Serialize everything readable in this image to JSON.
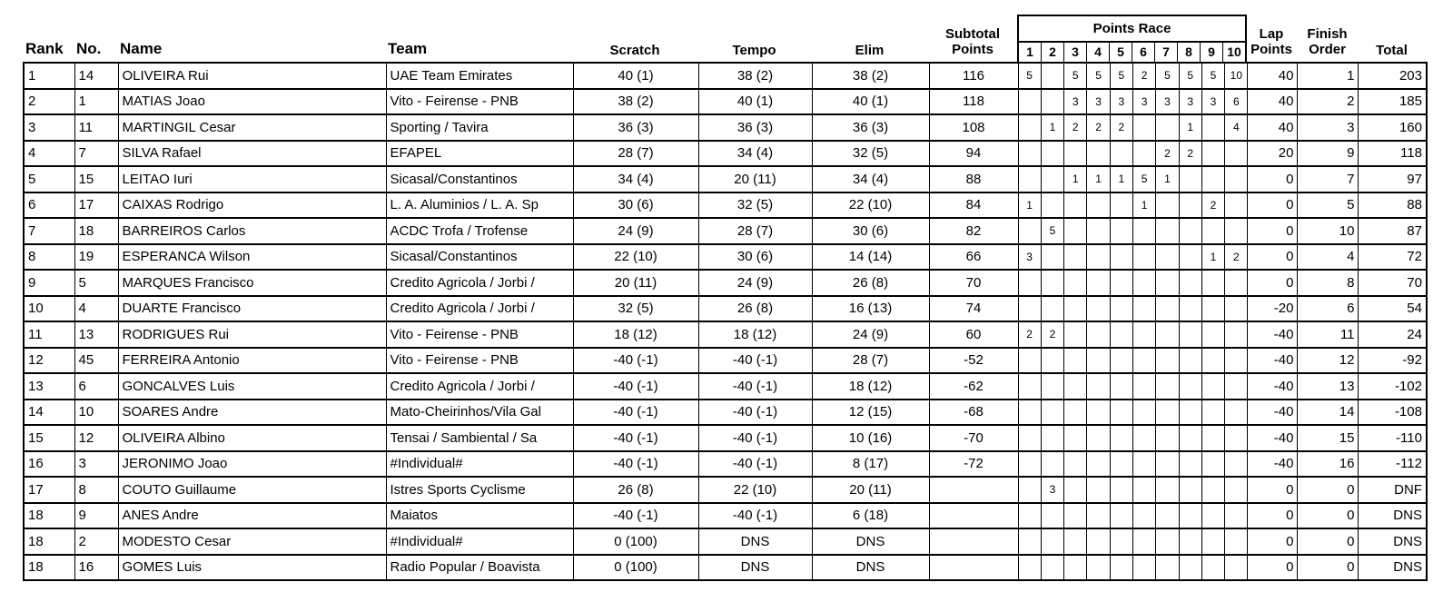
{
  "colors": {
    "background": "#ffffff",
    "text": "#000000",
    "border": "#000000"
  },
  "table": {
    "headers": {
      "rank": "Rank",
      "no": "No.",
      "name": "Name",
      "team": "Team",
      "scratch": "Scratch",
      "tempo": "Tempo",
      "elim": "Elim",
      "subtotal_line1": "Subtotal",
      "subtotal_line2": "Points",
      "points_race": "Points Race",
      "sprint_numbers": [
        "1",
        "2",
        "3",
        "4",
        "5",
        "6",
        "7",
        "8",
        "9",
        "10"
      ],
      "lap_line1": "Lap",
      "lap_line2": "Points",
      "finish_line1": "Finish",
      "finish_line2": "Order",
      "total": "Total"
    },
    "rows": [
      {
        "rank": "1",
        "no": "14",
        "name": "OLIVEIRA Rui",
        "team": "UAE Team Emirates",
        "scratch": "40 (1)",
        "tempo": "38 (2)",
        "elim": "38 (2)",
        "subtotal": "116",
        "sprints": [
          "5",
          "",
          "5",
          "5",
          "5",
          "2",
          "5",
          "5",
          "5",
          "10"
        ],
        "lap": "40",
        "finish": "1",
        "total": "203"
      },
      {
        "rank": "2",
        "no": "1",
        "name": "MATIAS Joao",
        "team": "Vito - Feirense - PNB",
        "scratch": "38 (2)",
        "tempo": "40 (1)",
        "elim": "40 (1)",
        "subtotal": "118",
        "sprints": [
          "",
          "",
          "3",
          "3",
          "3",
          "3",
          "3",
          "3",
          "3",
          "6"
        ],
        "lap": "40",
        "finish": "2",
        "total": "185"
      },
      {
        "rank": "3",
        "no": "11",
        "name": "MARTINGIL Cesar",
        "team": "Sporting / Tavira",
        "scratch": "36 (3)",
        "tempo": "36 (3)",
        "elim": "36 (3)",
        "subtotal": "108",
        "sprints": [
          "",
          "1",
          "2",
          "2",
          "2",
          "",
          "",
          "1",
          "",
          "4"
        ],
        "lap": "40",
        "finish": "3",
        "total": "160"
      },
      {
        "rank": "4",
        "no": "7",
        "name": "SILVA Rafael",
        "team": "EFAPEL",
        "scratch": "28 (7)",
        "tempo": "34 (4)",
        "elim": "32 (5)",
        "subtotal": "94",
        "sprints": [
          "",
          "",
          "",
          "",
          "",
          "",
          "2",
          "2",
          "",
          ""
        ],
        "lap": "20",
        "finish": "9",
        "total": "118"
      },
      {
        "rank": "5",
        "no": "15",
        "name": "LEITAO Iuri",
        "team": "Sicasal/Constantinos",
        "scratch": "34 (4)",
        "tempo": "20 (11)",
        "elim": "34 (4)",
        "subtotal": "88",
        "sprints": [
          "",
          "",
          "1",
          "1",
          "1",
          "5",
          "1",
          "",
          "",
          ""
        ],
        "lap": "0",
        "finish": "7",
        "total": "97"
      },
      {
        "rank": "6",
        "no": "17",
        "name": "CAIXAS Rodrigo",
        "team": "L. A. Aluminios / L. A. Sp",
        "scratch": "30 (6)",
        "tempo": "32 (5)",
        "elim": "22 (10)",
        "subtotal": "84",
        "sprints": [
          "1",
          "",
          "",
          "",
          "",
          "1",
          "",
          "",
          "2",
          ""
        ],
        "lap": "0",
        "finish": "5",
        "total": "88"
      },
      {
        "rank": "7",
        "no": "18",
        "name": "BARREIROS Carlos",
        "team": "ACDC Trofa / Trofense",
        "scratch": "24 (9)",
        "tempo": "28 (7)",
        "elim": "30 (6)",
        "subtotal": "82",
        "sprints": [
          "",
          "5",
          "",
          "",
          "",
          "",
          "",
          "",
          "",
          ""
        ],
        "lap": "0",
        "finish": "10",
        "total": "87"
      },
      {
        "rank": "8",
        "no": "19",
        "name": "ESPERANCA Wilson",
        "team": "Sicasal/Constantinos",
        "scratch": "22 (10)",
        "tempo": "30 (6)",
        "elim": "14 (14)",
        "subtotal": "66",
        "sprints": [
          "3",
          "",
          "",
          "",
          "",
          "",
          "",
          "",
          "1",
          "2"
        ],
        "lap": "0",
        "finish": "4",
        "total": "72"
      },
      {
        "rank": "9",
        "no": "5",
        "name": "MARQUES Francisco",
        "team": "Credito Agricola / Jorbi /",
        "scratch": "20 (11)",
        "tempo": "24 (9)",
        "elim": "26 (8)",
        "subtotal": "70",
        "sprints": [
          "",
          "",
          "",
          "",
          "",
          "",
          "",
          "",
          "",
          ""
        ],
        "lap": "0",
        "finish": "8",
        "total": "70"
      },
      {
        "rank": "10",
        "no": "4",
        "name": "DUARTE Francisco",
        "team": "Credito Agricola / Jorbi /",
        "scratch": "32 (5)",
        "tempo": "26 (8)",
        "elim": "16 (13)",
        "subtotal": "74",
        "sprints": [
          "",
          "",
          "",
          "",
          "",
          "",
          "",
          "",
          "",
          ""
        ],
        "lap": "-20",
        "finish": "6",
        "total": "54"
      },
      {
        "rank": "11",
        "no": "13",
        "name": "RODRIGUES Rui",
        "team": "Vito - Feirense - PNB",
        "scratch": "18 (12)",
        "tempo": "18 (12)",
        "elim": "24 (9)",
        "subtotal": "60",
        "sprints": [
          "2",
          "2",
          "",
          "",
          "",
          "",
          "",
          "",
          "",
          ""
        ],
        "lap": "-40",
        "finish": "11",
        "total": "24"
      },
      {
        "rank": "12",
        "no": "45",
        "name": "FERREIRA Antonio",
        "team": "Vito - Feirense - PNB",
        "scratch": "-40 (-1)",
        "tempo": "-40 (-1)",
        "elim": "28 (7)",
        "subtotal": "-52",
        "sprints": [
          "",
          "",
          "",
          "",
          "",
          "",
          "",
          "",
          "",
          ""
        ],
        "lap": "-40",
        "finish": "12",
        "total": "-92"
      },
      {
        "rank": "13",
        "no": "6",
        "name": "GONCALVES Luis",
        "team": "Credito Agricola / Jorbi /",
        "scratch": "-40 (-1)",
        "tempo": "-40 (-1)",
        "elim": "18 (12)",
        "subtotal": "-62",
        "sprints": [
          "",
          "",
          "",
          "",
          "",
          "",
          "",
          "",
          "",
          ""
        ],
        "lap": "-40",
        "finish": "13",
        "total": "-102"
      },
      {
        "rank": "14",
        "no": "10",
        "name": "SOARES Andre",
        "team": "Mato-Cheirinhos/Vila Gal",
        "scratch": "-40 (-1)",
        "tempo": "-40 (-1)",
        "elim": "12 (15)",
        "subtotal": "-68",
        "sprints": [
          "",
          "",
          "",
          "",
          "",
          "",
          "",
          "",
          "",
          ""
        ],
        "lap": "-40",
        "finish": "14",
        "total": "-108"
      },
      {
        "rank": "15",
        "no": "12",
        "name": "OLIVEIRA Albino",
        "team": "Tensai / Sambiental / Sa",
        "scratch": "-40 (-1)",
        "tempo": "-40 (-1)",
        "elim": "10 (16)",
        "subtotal": "-70",
        "sprints": [
          "",
          "",
          "",
          "",
          "",
          "",
          "",
          "",
          "",
          ""
        ],
        "lap": "-40",
        "finish": "15",
        "total": "-110"
      },
      {
        "rank": "16",
        "no": "3",
        "name": "JERONIMO Joao",
        "team": "#Individual#",
        "scratch": "-40 (-1)",
        "tempo": "-40 (-1)",
        "elim": "8 (17)",
        "subtotal": "-72",
        "sprints": [
          "",
          "",
          "",
          "",
          "",
          "",
          "",
          "",
          "",
          ""
        ],
        "lap": "-40",
        "finish": "16",
        "total": "-112"
      },
      {
        "rank": "17",
        "no": "8",
        "name": "COUTO Guillaume",
        "team": "Istres Sports Cyclisme",
        "scratch": "26 (8)",
        "tempo": "22 (10)",
        "elim": "20 (11)",
        "subtotal": "",
        "sprints": [
          "",
          "3",
          "",
          "",
          "",
          "",
          "",
          "",
          "",
          ""
        ],
        "lap": "0",
        "finish": "0",
        "total": "DNF"
      },
      {
        "rank": "18",
        "no": "9",
        "name": "ANES Andre",
        "team": "Maiatos",
        "scratch": "-40 (-1)",
        "tempo": "-40 (-1)",
        "elim": "6 (18)",
        "subtotal": "",
        "sprints": [
          "",
          "",
          "",
          "",
          "",
          "",
          "",
          "",
          "",
          ""
        ],
        "lap": "0",
        "finish": "0",
        "total": "DNS"
      },
      {
        "rank": "18",
        "no": "2",
        "name": "MODESTO Cesar",
        "team": "#Individual#",
        "scratch": "0 (100)",
        "tempo": "DNS",
        "elim": "DNS",
        "subtotal": "",
        "sprints": [
          "",
          "",
          "",
          "",
          "",
          "",
          "",
          "",
          "",
          ""
        ],
        "lap": "0",
        "finish": "0",
        "total": "DNS"
      },
      {
        "rank": "18",
        "no": "16",
        "name": "GOMES Luis",
        "team": "Radio Popular / Boavista",
        "scratch": "0 (100)",
        "tempo": "DNS",
        "elim": "DNS",
        "subtotal": "",
        "sprints": [
          "",
          "",
          "",
          "",
          "",
          "",
          "",
          "",
          "",
          ""
        ],
        "lap": "0",
        "finish": "0",
        "total": "DNS"
      }
    ]
  }
}
